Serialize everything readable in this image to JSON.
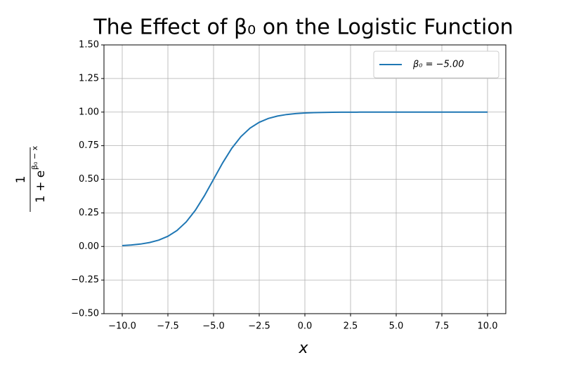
{
  "chart_data": {
    "type": "line",
    "title": "The Effect of β₀ on the Logistic Function",
    "xlabel": "x",
    "ylabel_numerator": "1",
    "ylabel_denominator_base": "1 + e",
    "ylabel_denominator_exponent": "β₀ − x",
    "x": [
      -10,
      -9.5,
      -9,
      -8.5,
      -8,
      -7.5,
      -7,
      -6.5,
      -6,
      -5.5,
      -5,
      -4.5,
      -4,
      -3.5,
      -3,
      -2.5,
      -2,
      -1.5,
      -1,
      -0.5,
      0,
      0.5,
      1,
      1.5,
      2,
      2.5,
      3,
      3.5,
      4,
      4.5,
      5,
      5.5,
      6,
      6.5,
      7,
      7.5,
      8,
      8.5,
      9,
      9.5,
      10
    ],
    "series": [
      {
        "name": "β₀ = −5.00",
        "color": "#1f77b4",
        "values": [
          0.0067,
          0.011,
          0.018,
          0.0293,
          0.0474,
          0.0759,
          0.1192,
          0.1824,
          0.2689,
          0.3775,
          0.5,
          0.6225,
          0.7311,
          0.8176,
          0.8808,
          0.9241,
          0.9526,
          0.9707,
          0.982,
          0.989,
          0.9933,
          0.9959,
          0.9975,
          0.9985,
          0.9991,
          0.9994,
          0.9997,
          0.9998,
          0.9999,
          1,
          1,
          1,
          1,
          1,
          1,
          1,
          1,
          1,
          1,
          1,
          1
        ]
      }
    ],
    "xlim": [
      -11,
      11
    ],
    "ylim": [
      -0.5,
      1.5
    ],
    "xticks": [
      {
        "value": -10,
        "label": "−10.0"
      },
      {
        "value": -7.5,
        "label": "−7.5"
      },
      {
        "value": -5,
        "label": "−5.0"
      },
      {
        "value": -2.5,
        "label": "−2.5"
      },
      {
        "value": 0,
        "label": "0.0"
      },
      {
        "value": 2.5,
        "label": "2.5"
      },
      {
        "value": 5,
        "label": "5.0"
      },
      {
        "value": 7.5,
        "label": "7.5"
      },
      {
        "value": 10,
        "label": "10.0"
      }
    ],
    "yticks": [
      {
        "value": -0.5,
        "label": "−0.50"
      },
      {
        "value": -0.25,
        "label": "−0.25"
      },
      {
        "value": 0,
        "label": "0.00"
      },
      {
        "value": 0.25,
        "label": "0.25"
      },
      {
        "value": 0.5,
        "label": "0.50"
      },
      {
        "value": 0.75,
        "label": "0.75"
      },
      {
        "value": 1,
        "label": "1.00"
      },
      {
        "value": 1.25,
        "label": "1.25"
      },
      {
        "value": 1.5,
        "label": "1.50"
      }
    ],
    "grid": true,
    "legend": "upper right"
  }
}
